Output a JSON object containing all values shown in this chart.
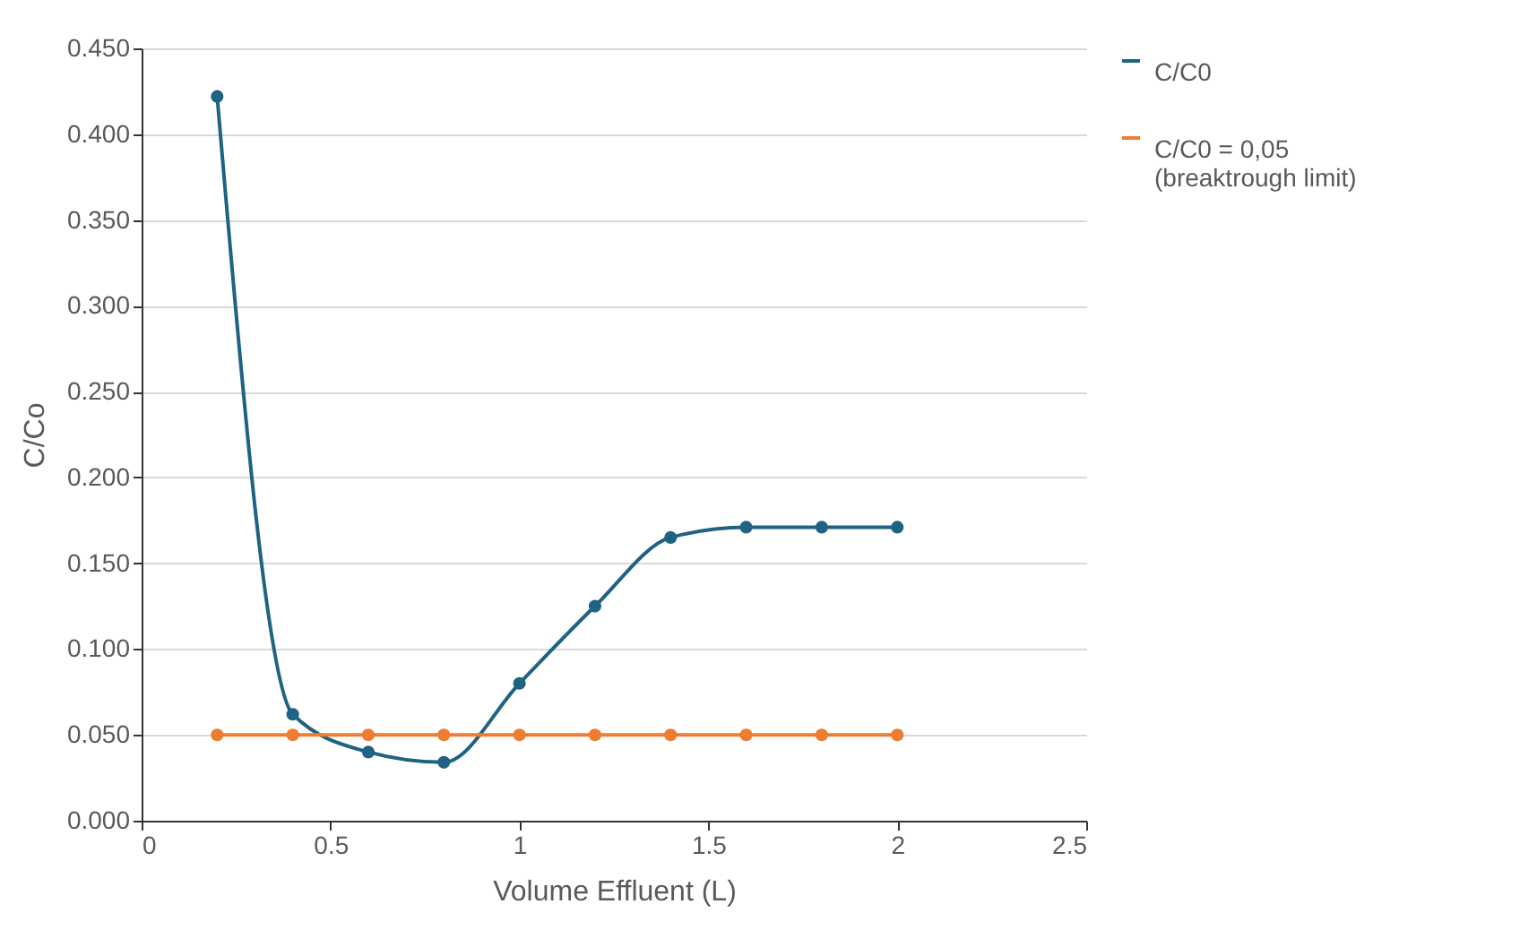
{
  "chart_data": {
    "type": "line",
    "xlabel": "Volume Effluent (L)",
    "ylabel": "C/Co",
    "x": [
      0.2,
      0.4,
      0.6,
      0.8,
      1.0,
      1.2,
      1.4,
      1.6,
      1.8,
      2.0
    ],
    "series": [
      {
        "name": "C/C0",
        "color": "#1f6383",
        "values": [
          0.422,
          0.062,
          0.04,
          0.034,
          0.08,
          0.125,
          0.165,
          0.171,
          0.171,
          0.171
        ]
      },
      {
        "name": "C/C0 = 0,05 (breaktrough limit)",
        "color": "#ed7d31",
        "values": [
          0.05,
          0.05,
          0.05,
          0.05,
          0.05,
          0.05,
          0.05,
          0.05,
          0.05,
          0.05
        ]
      }
    ],
    "xlim": [
      0,
      2.5
    ],
    "xticks": [
      0,
      0.5,
      1,
      1.5,
      2,
      2.5
    ],
    "ylim": [
      0,
      0.45
    ],
    "yticks": [
      {
        "value": 0,
        "label": "0.000"
      },
      {
        "value": 0.05,
        "label": "0.050"
      },
      {
        "value": 0.1,
        "label": "0.100"
      },
      {
        "value": 0.15,
        "label": "0.150"
      },
      {
        "value": 0.2,
        "label": "0.200"
      },
      {
        "value": 0.25,
        "label": "0.250"
      },
      {
        "value": 0.3,
        "label": "0.300"
      },
      {
        "value": 0.35,
        "label": "0.350"
      },
      {
        "value": 0.4,
        "label": "0.400"
      },
      {
        "value": 0.45,
        "label": "0.450"
      }
    ],
    "grid": "y",
    "legend": "right",
    "marker": "circle",
    "line_style": "solid"
  }
}
